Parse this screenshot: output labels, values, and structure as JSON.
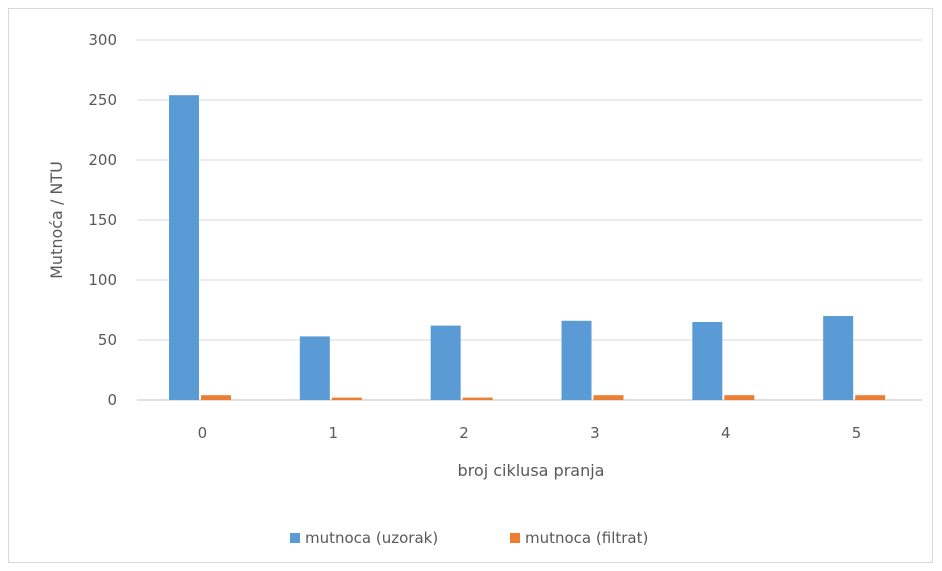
{
  "chart_data": {
    "type": "bar",
    "categories": [
      "0",
      "1",
      "2",
      "3",
      "4",
      "5"
    ],
    "series": [
      {
        "name": "mutnoca (uzorak)",
        "color": "#5b9bd5",
        "values": [
          254,
          53,
          62,
          66,
          65,
          70
        ]
      },
      {
        "name": "mutnoca (filtrat)",
        "color": "#ed7d31",
        "values": [
          4,
          2,
          2,
          4,
          4,
          4
        ]
      }
    ],
    "xlabel": "broj ciklusa pranja",
    "ylabel": "Mutnoća / NTU",
    "ylim": [
      0,
      300
    ],
    "yticks": [
      "0",
      "50",
      "100",
      "150",
      "200",
      "250",
      "300"
    ],
    "grid": true,
    "legend": "bottom"
  }
}
